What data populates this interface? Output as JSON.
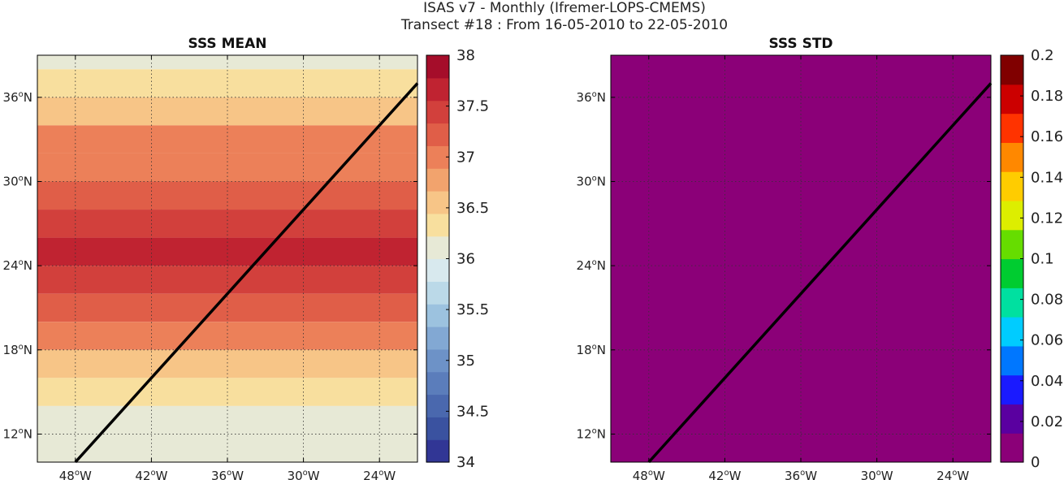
{
  "header": {
    "title_line1": "ISAS v7 - Monthly (Ifremer-LOPS-CMEMS)",
    "title_line2": "Transect #18 : From 16-05-2010 to 22-05-2010"
  },
  "colors": {
    "transect_line": "#000000",
    "std_field": "#8b0078"
  },
  "chart_data": [
    {
      "type": "heatmap",
      "title": "SSS MEAN",
      "xlim": [
        -51,
        -21
      ],
      "ylim": [
        10,
        39
      ],
      "x_ticks": [
        "48°W",
        "42°W",
        "36°W",
        "30°W",
        "24°W"
      ],
      "y_ticks": [
        "12°N",
        "18°N",
        "24°N",
        "30°N",
        "36°N"
      ],
      "grid": true,
      "colorbar": {
        "min": 34,
        "max": 38,
        "step": 0.25,
        "tick_labels": [
          "34",
          "34.5",
          "35",
          "35.5",
          "36",
          "36.5",
          "37",
          "37.5",
          "38"
        ],
        "colors": [
          "#313695",
          "#3a52a0",
          "#4a68ae",
          "#5b7dbb",
          "#6d92c7",
          "#82a8d3",
          "#9cc2df",
          "#bbd9e8",
          "#d8e9ee",
          "#e7e9d6",
          "#f8df9e",
          "#f7c587",
          "#f2a36d",
          "#ec8059",
          "#e05e48",
          "#d2403c",
          "#c02331",
          "#a50d2a"
        ]
      },
      "field_rows": [
        {
          "lat_range": [
            38,
            39
          ],
          "value": 36.1
        },
        {
          "lat_range": [
            36,
            38
          ],
          "value": 36.4
        },
        {
          "lat_range": [
            34,
            36
          ],
          "value": 36.6
        },
        {
          "lat_range": [
            32,
            34
          ],
          "value": 36.9
        },
        {
          "lat_range": [
            30,
            32
          ],
          "value": 37.1
        },
        {
          "lat_range": [
            28,
            30
          ],
          "value": 37.3
        },
        {
          "lat_range": [
            26,
            28
          ],
          "value": 37.4
        },
        {
          "lat_range": [
            24,
            26
          ],
          "value": 37.6
        },
        {
          "lat_range": [
            22,
            24
          ],
          "value": 37.4
        },
        {
          "lat_range": [
            20,
            22
          ],
          "value": 37.2
        },
        {
          "lat_range": [
            18,
            20
          ],
          "value": 36.9
        },
        {
          "lat_range": [
            16,
            18
          ],
          "value": 36.6
        },
        {
          "lat_range": [
            14,
            16
          ],
          "value": 36.4
        },
        {
          "lat_range": [
            12,
            14
          ],
          "value": 36.2
        },
        {
          "lat_range": [
            10,
            12
          ],
          "value": 36.0
        }
      ],
      "transect": [
        [
          -48,
          10
        ],
        [
          -21,
          37
        ]
      ]
    },
    {
      "type": "heatmap",
      "title": "SSS STD",
      "xlim": [
        -51,
        -21
      ],
      "ylim": [
        10,
        39
      ],
      "x_ticks": [
        "48°W",
        "42°W",
        "36°W",
        "30°W",
        "24°W"
      ],
      "y_ticks": [
        "12°N",
        "18°N",
        "24°N",
        "30°N",
        "36°N"
      ],
      "grid": true,
      "field_value": 0,
      "colorbar": {
        "min": 0,
        "max": 0.2,
        "tick_labels": [
          "0",
          "0.02",
          "0.04",
          "0.06",
          "0.08",
          "0.1",
          "0.12",
          "0.14",
          "0.16",
          "0.18",
          "0.2"
        ],
        "colors": [
          "#8b0078",
          "#5a00a0",
          "#1a1aff",
          "#0077ff",
          "#00ccff",
          "#00e0a0",
          "#00cc30",
          "#66dd00",
          "#ddee00",
          "#ffcc00",
          "#ff8800",
          "#ff3300",
          "#cc0000",
          "#800000"
        ]
      },
      "transect": [
        [
          -48,
          10
        ],
        [
          -21,
          37
        ]
      ]
    }
  ]
}
